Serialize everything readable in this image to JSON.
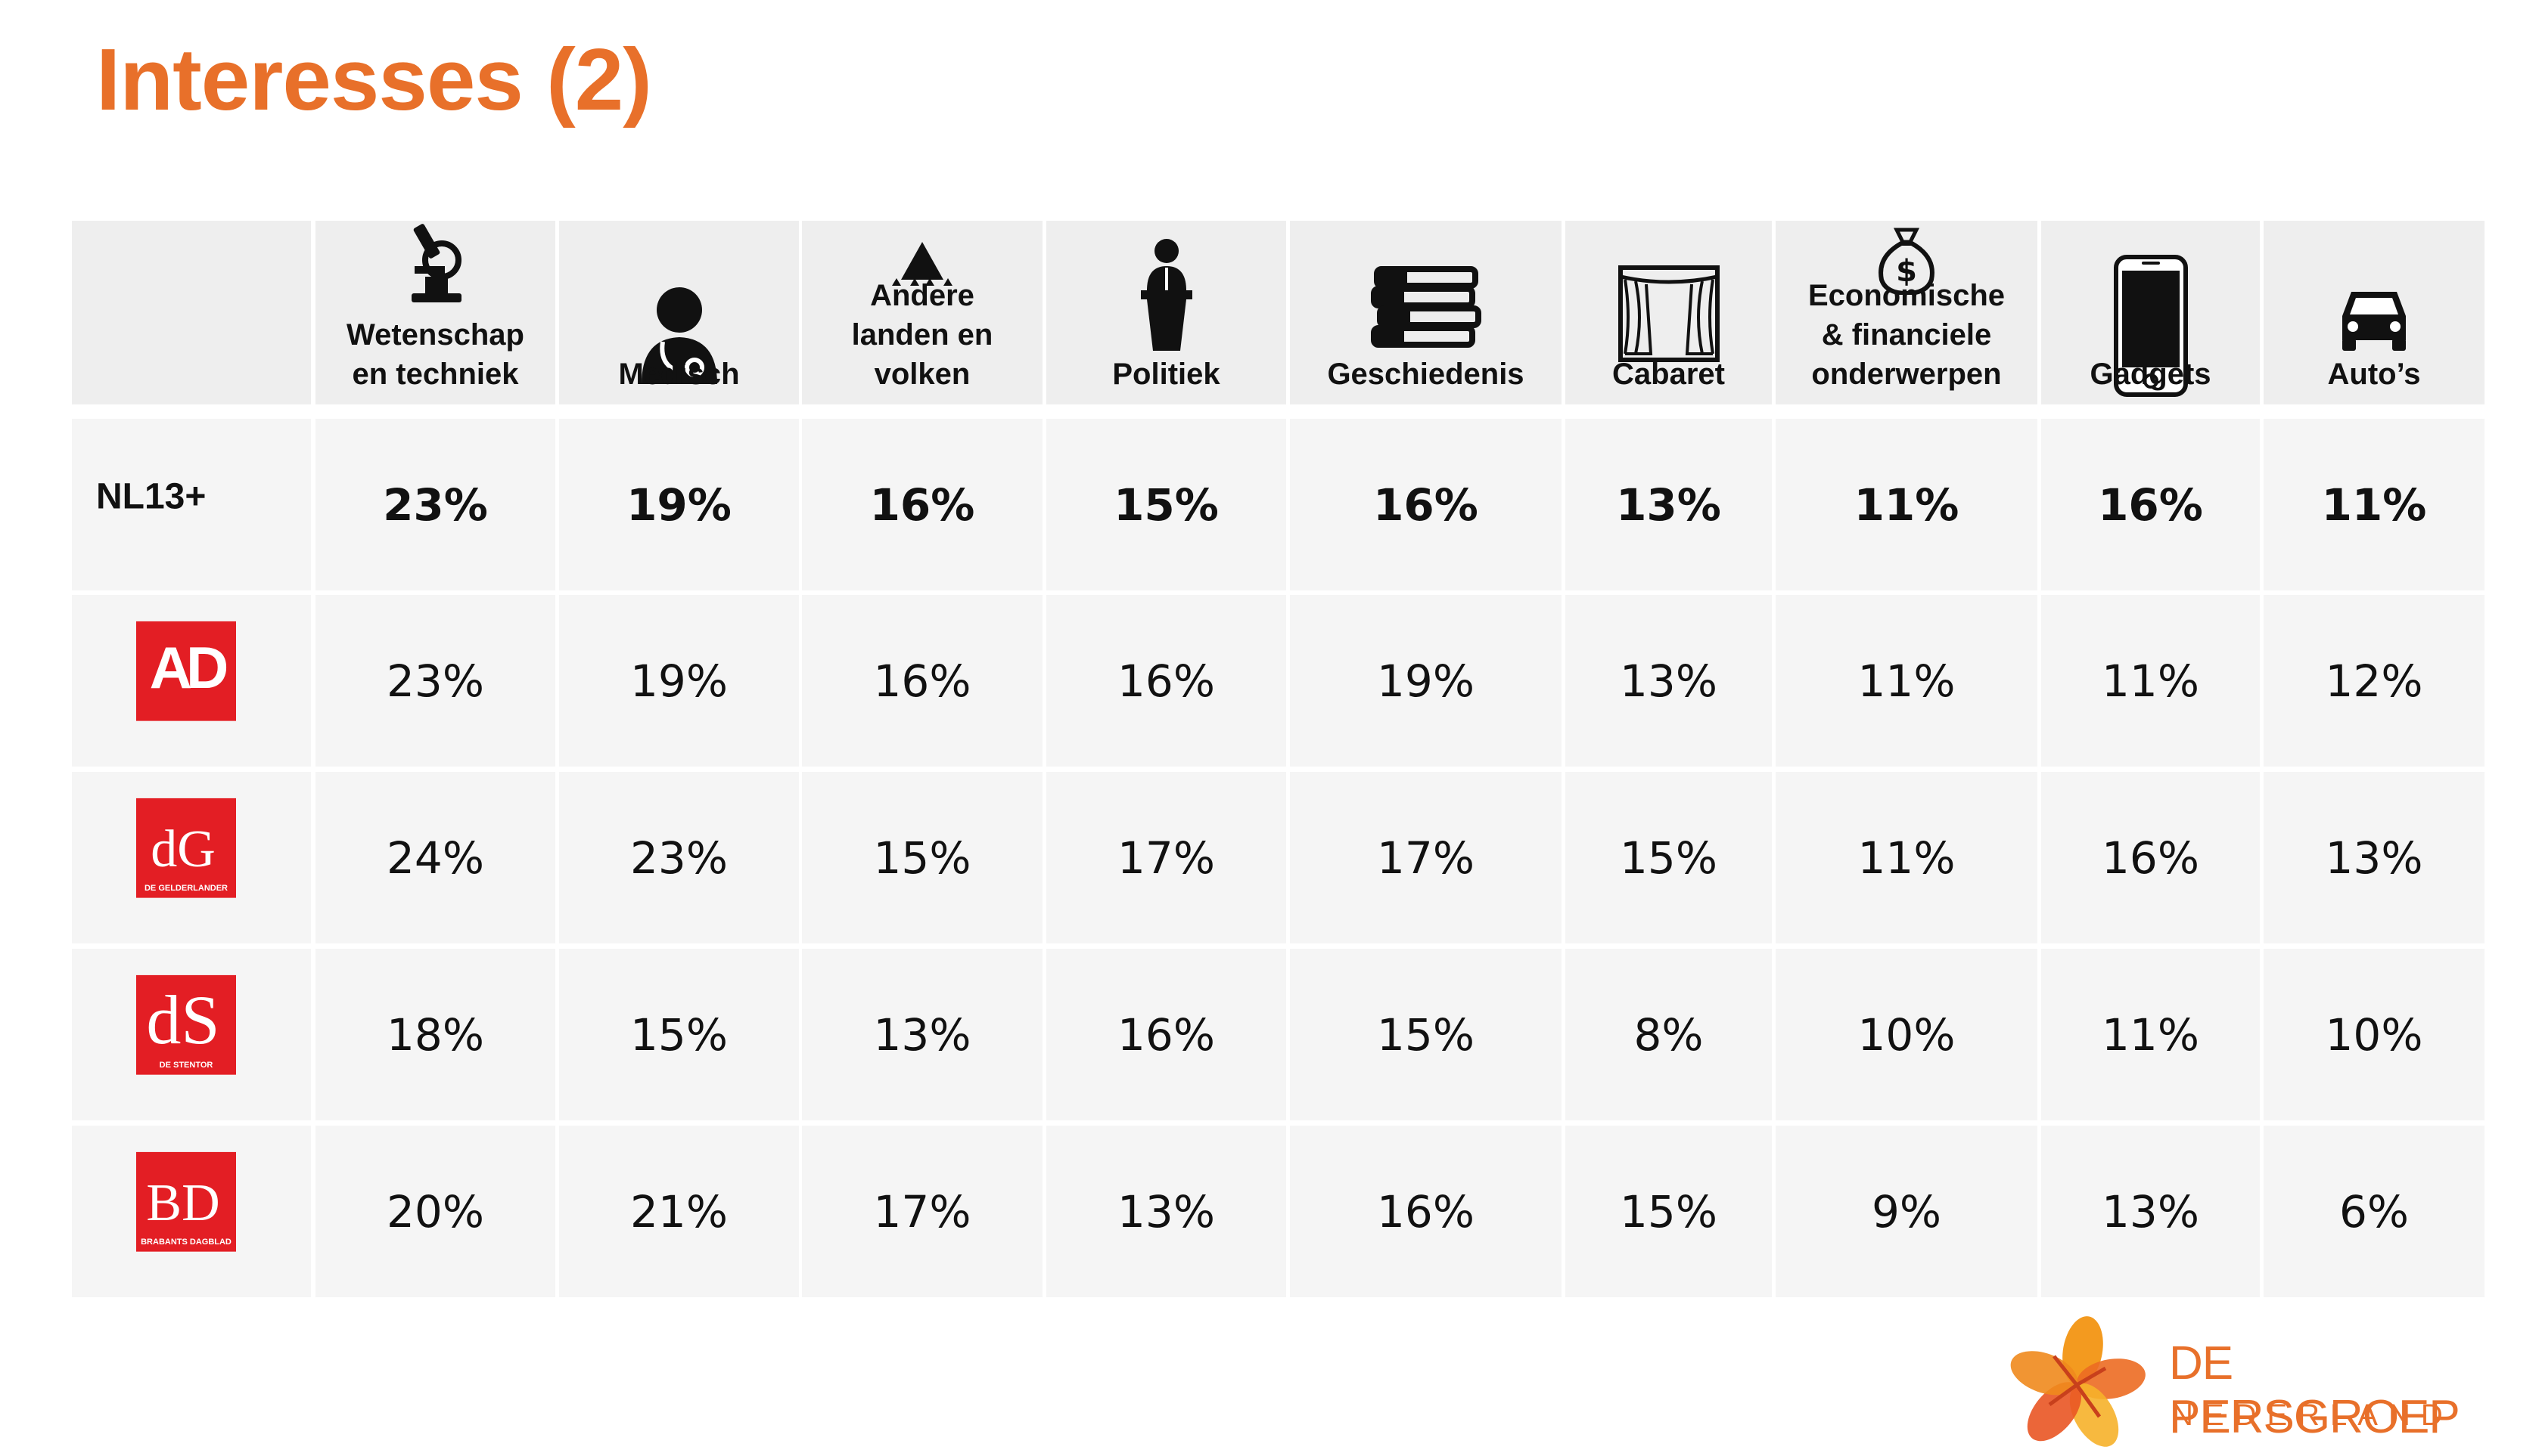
{
  "title": "Interesses (2)",
  "columns": [
    {
      "label": "Wetenschap\nen techniek",
      "icon": "microscope-icon"
    },
    {
      "label": "Medisch",
      "icon": "doctor-icon"
    },
    {
      "label": "Andere\nlanden en\nvolken",
      "icon": "tent-icon"
    },
    {
      "label": "Politiek",
      "icon": "podium-speaker-icon"
    },
    {
      "label": "Geschiedenis",
      "icon": "books-icon"
    },
    {
      "label": "Cabaret",
      "icon": "theater-stage-icon"
    },
    {
      "label": "Economische\n& financiele\nonderwerpen",
      "icon": "money-bag-icon"
    },
    {
      "label": "Gadgets",
      "icon": "smartphone-icon"
    },
    {
      "label": "Auto’s",
      "icon": "car-icon"
    }
  ],
  "rows": [
    {
      "label": "NL13+",
      "brand": null,
      "values": [
        "23%",
        "19%",
        "16%",
        "15%",
        "16%",
        "13%",
        "11%",
        "16%",
        "11%"
      ]
    },
    {
      "label": null,
      "brand": {
        "name": "AD",
        "text": "AD"
      },
      "values": [
        "23%",
        "19%",
        "16%",
        "16%",
        "19%",
        "13%",
        "11%",
        "11%",
        "12%"
      ]
    },
    {
      "label": null,
      "brand": {
        "name": "de-gelderlander",
        "text": "dG",
        "sub": "DE GELDERLANDER"
      },
      "values": [
        "24%",
        "23%",
        "15%",
        "17%",
        "17%",
        "15%",
        "11%",
        "16%",
        "13%"
      ]
    },
    {
      "label": null,
      "brand": {
        "name": "de-stentor",
        "text": "dS",
        "sub": "DE STENTOR"
      },
      "values": [
        "18%",
        "15%",
        "13%",
        "16%",
        "15%",
        "8%",
        "10%",
        "11%",
        "10%"
      ]
    },
    {
      "label": null,
      "brand": {
        "name": "brabants-dagblad",
        "text": "BD",
        "sub": "BRABANTS DAGBLAD"
      },
      "values": [
        "20%",
        "21%",
        "17%",
        "13%",
        "16%",
        "15%",
        "9%",
        "13%",
        "6%"
      ]
    }
  ],
  "footer": {
    "name": "DE PERSGROEP",
    "sub": "NEDERLAND"
  },
  "colors": {
    "accent": "#e8702a",
    "brand_red": "#e31e24",
    "header_bg": "#eeeeee",
    "row_bg": "#f5f5f5"
  }
}
